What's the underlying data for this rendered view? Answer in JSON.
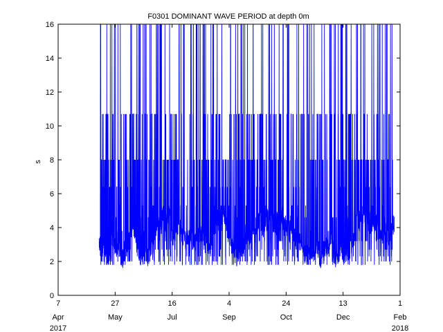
{
  "chart_data": {
    "type": "line",
    "title": "F0301 DOMINANT WAVE PERIOD at depth 0m",
    "xlabel": "",
    "ylabel": "s",
    "xlim": [
      "2017-04-07",
      "2018-02-01"
    ],
    "ylim": [
      0,
      16
    ],
    "x_ticks": [
      {
        "date": "2017-04-07",
        "day": "7",
        "month": "Apr"
      },
      {
        "date": "2017-05-27",
        "day": "27",
        "month": "May"
      },
      {
        "date": "2017-07-16",
        "day": "16",
        "month": "Jul"
      },
      {
        "date": "2017-09-04",
        "day": "4",
        "month": "Sep"
      },
      {
        "date": "2017-10-24",
        "day": "24",
        "month": "Oct"
      },
      {
        "date": "2017-12-13",
        "day": "13",
        "month": "Dec"
      },
      {
        "date": "2018-02-01",
        "day": "1",
        "month": "Feb"
      }
    ],
    "year_labels": {
      "start": "2017",
      "end": "2018"
    },
    "y_ticks": [
      0,
      2,
      4,
      6,
      8,
      10,
      12,
      14,
      16
    ],
    "grid": false,
    "legend": "none",
    "series": [
      {
        "color": "#0000ff",
        "data_start": "2017-05-13",
        "data_end": "2018-01-27",
        "typical_min": 1.6,
        "typical_max": 6.4,
        "discrete_levels": [
          1.8,
          2.0,
          2.3,
          2.7,
          3.2,
          3.8,
          4.6,
          5.3,
          6.4,
          8.0,
          10.7,
          16.0
        ]
      }
    ]
  }
}
